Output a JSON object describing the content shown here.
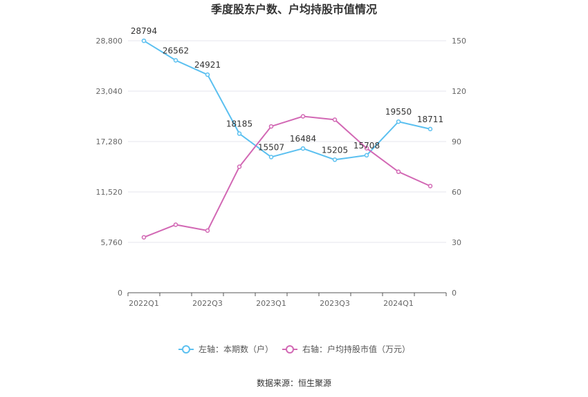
{
  "chart_data": {
    "type": "line",
    "title": "季度股东户数、户均持股市值情况",
    "source": "数据来源：恒生聚源",
    "categories": [
      "2022Q1",
      "2022Q2",
      "2022Q3",
      "2022Q4",
      "2023Q1",
      "2023Q2",
      "2023Q3",
      "2023Q4",
      "2024Q1",
      "2024Q2"
    ],
    "x_tick_labels": [
      "2022Q1",
      "2022Q3",
      "2023Q1",
      "2023Q3",
      "2024Q1"
    ],
    "left_axis": {
      "ticks": [
        "0",
        "5,760",
        "11,520",
        "17,280",
        "23,040",
        "28,800"
      ],
      "ylim": [
        0,
        28800
      ]
    },
    "right_axis": {
      "ticks": [
        "0",
        "30",
        "60",
        "90",
        "120",
        "150"
      ],
      "ylim": [
        0,
        150
      ]
    },
    "grid": true,
    "legend_position": "bottom",
    "series": [
      {
        "name": "左轴：本期数（户）",
        "axis": "left",
        "color": "#5bc0f0",
        "values": [
          28794,
          26562,
          24921,
          18185,
          15507,
          16484,
          15205,
          15708,
          19550,
          18711
        ],
        "labels": [
          "28794",
          "26562",
          "24921",
          "18185",
          "15507",
          "16484",
          "15205",
          "15708",
          "19550",
          "18711"
        ]
      },
      {
        "name": "右轴：户均持股市值（万元）",
        "axis": "right",
        "color": "#d268b4",
        "values": [
          33,
          40.5,
          37,
          75,
          99,
          105,
          103,
          86,
          72,
          63.5
        ]
      }
    ]
  }
}
